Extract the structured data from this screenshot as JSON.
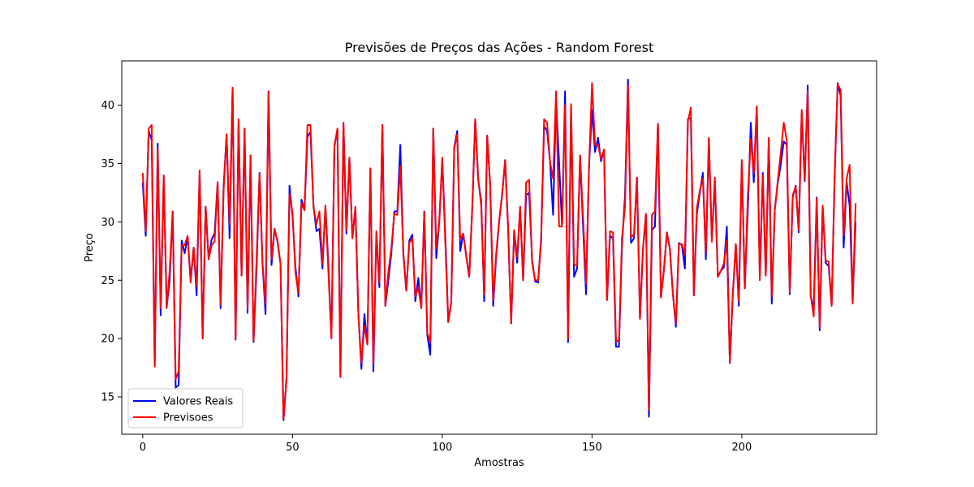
{
  "chart_data": {
    "type": "line",
    "title": "Previsões de Preços das Ações - Random Forest",
    "xlabel": "Amostras",
    "ylabel": "Preço",
    "xlim": [
      -7,
      245
    ],
    "ylim": [
      11.8,
      43.8
    ],
    "xticks": [
      0,
      50,
      100,
      150,
      200
    ],
    "yticks": [
      15,
      20,
      25,
      30,
      35,
      40
    ],
    "grid": false,
    "legend_position": "lower-left",
    "series": [
      {
        "name": "Valores Reais",
        "color": "#0000ff",
        "values": [
          33.4,
          28.8,
          37.8,
          37.0,
          17.7,
          36.7,
          22.0,
          33.8,
          22.7,
          25.0,
          30.9,
          15.8,
          16.0,
          28.4,
          27.3,
          28.7,
          25.0,
          27.8,
          23.7,
          34.4,
          20.0,
          31.3,
          26.8,
          28.5,
          29.0,
          33.4,
          22.6,
          33.0,
          37.5,
          28.6,
          41.5,
          19.9,
          38.7,
          25.4,
          38.0,
          22.2,
          35.7,
          19.7,
          25.9,
          34.2,
          26.4,
          22.1,
          41.2,
          26.3,
          29.4,
          28.3,
          26.4,
          13.0,
          16.5,
          33.1,
          30.5,
          26.1,
          23.6,
          31.9,
          31.0,
          37.3,
          37.7,
          31.4,
          29.2,
          29.4,
          26.0,
          31.3,
          26.3,
          20.1,
          36.5,
          37.9,
          16.7,
          38.5,
          29.0,
          35.5,
          28.6,
          31.2,
          22.1,
          17.4,
          22.1,
          19.5,
          34.5,
          17.2,
          29.0,
          24.4,
          38.3,
          22.8,
          25.0,
          27.3,
          30.9,
          30.9,
          36.6,
          27.2,
          24.1,
          28.4,
          28.9,
          23.2,
          25.2,
          22.6,
          30.9,
          20.3,
          18.6,
          38.0,
          26.9,
          30.0,
          35.3,
          29.0,
          21.4,
          23.1,
          36.4,
          37.8,
          27.5,
          29.0,
          27.1,
          25.3,
          31.1,
          38.8,
          33.6,
          31.8,
          23.2,
          37.4,
          33.1,
          22.8,
          27.0,
          30.1,
          32.4,
          35.3,
          29.3,
          21.3,
          29.2,
          26.5,
          31.3,
          25.0,
          32.3,
          32.5,
          26.7,
          24.9,
          24.8,
          28.6,
          38.2,
          37.8,
          35.1,
          30.6,
          40.5,
          35.1,
          29.6,
          41.2,
          19.7,
          39.7,
          25.3,
          26.0,
          35.7,
          29.6,
          23.8,
          34.8,
          39.6,
          36.0,
          37.2,
          35.2,
          36.2,
          23.3,
          28.8,
          28.6,
          19.3,
          19.3,
          28.0,
          32.2,
          42.2,
          28.2,
          28.6,
          33.8,
          21.7,
          27.6,
          30.6,
          13.3,
          29.3,
          29.6,
          38.4,
          23.6,
          25.9,
          29.1,
          27.6,
          23.8,
          21.0,
          28.2,
          28.0,
          26.0,
          38.8,
          38.9,
          23.7,
          30.7,
          32.5,
          34.2,
          26.8,
          37.1,
          28.5,
          33.5,
          25.3,
          25.8,
          26.1,
          29.6,
          17.9,
          23.8,
          28.1,
          22.8,
          35.3,
          24.3,
          31.0,
          38.5,
          33.4,
          39.9,
          25.3,
          34.2,
          25.4,
          37.1,
          23.0,
          31.0,
          33.3,
          34.9,
          36.9,
          36.6,
          23.8,
          32.1,
          33.1,
          29.1,
          39.3,
          33.5,
          41.7,
          23.6,
          22.6,
          32.1,
          20.7,
          31.2,
          26.5,
          26.2,
          22.9,
          33.9,
          41.9,
          40.8,
          27.8,
          33.4,
          31.4,
          23.2,
          30.0
        ]
      },
      {
        "name": "Previsoes",
        "color": "#ff0000",
        "values": [
          34.2,
          29.2,
          38.0,
          38.3,
          17.6,
          36.3,
          22.6,
          34.0,
          22.6,
          25.8,
          30.9,
          16.5,
          17.2,
          28.0,
          28.0,
          28.8,
          24.8,
          27.8,
          24.5,
          34.4,
          20.0,
          31.3,
          26.8,
          28.0,
          28.3,
          33.4,
          22.9,
          32.7,
          37.5,
          29.8,
          41.5,
          19.9,
          38.8,
          25.4,
          38.0,
          22.6,
          35.7,
          19.8,
          26.7,
          34.2,
          26.4,
          23.0,
          41.2,
          26.8,
          29.4,
          28.4,
          26.4,
          13.1,
          16.6,
          32.4,
          30.8,
          25.6,
          23.9,
          31.6,
          31.0,
          38.3,
          38.3,
          31.3,
          29.8,
          30.9,
          26.4,
          31.4,
          25.6,
          20.0,
          36.5,
          38.0,
          16.7,
          38.5,
          29.3,
          35.5,
          28.6,
          31.3,
          22.0,
          17.9,
          21.1,
          19.5,
          34.6,
          17.9,
          29.2,
          24.8,
          38.3,
          22.8,
          25.7,
          27.7,
          30.7,
          30.6,
          34.8,
          27.4,
          24.1,
          28.2,
          28.6,
          23.6,
          24.4,
          22.6,
          30.9,
          20.5,
          19.7,
          38.0,
          27.7,
          30.0,
          35.5,
          28.3,
          21.4,
          23.1,
          36.3,
          37.5,
          28.5,
          29.0,
          27.1,
          25.3,
          31.1,
          38.8,
          33.7,
          31.4,
          23.8,
          37.4,
          33.2,
          23.3,
          27.3,
          30.1,
          32.4,
          35.3,
          29.3,
          21.3,
          29.3,
          27.0,
          31.3,
          25.0,
          33.4,
          33.6,
          26.5,
          25.0,
          25.0,
          28.3,
          38.8,
          38.5,
          35.1,
          33.7,
          41.2,
          29.6,
          29.6,
          40.0,
          20.0,
          40.1,
          26.4,
          26.2,
          35.7,
          30.5,
          24.7,
          34.8,
          41.9,
          36.6,
          36.6,
          35.4,
          36.2,
          23.3,
          29.2,
          29.1,
          19.9,
          19.7,
          28.6,
          31.3,
          41.7,
          28.7,
          28.9,
          33.8,
          21.7,
          27.7,
          30.7,
          13.9,
          30.6,
          30.9,
          38.4,
          23.5,
          25.9,
          29.1,
          27.7,
          23.8,
          21.3,
          28.1,
          28.1,
          27.2,
          38.6,
          39.8,
          23.7,
          31.2,
          32.7,
          33.7,
          27.4,
          37.2,
          28.3,
          33.8,
          25.3,
          25.8,
          26.4,
          28.4,
          17.9,
          23.9,
          28.1,
          23.2,
          35.3,
          24.3,
          32.2,
          37.1,
          34.2,
          39.9,
          25.0,
          34.0,
          25.4,
          37.2,
          23.6,
          31.0,
          33.5,
          35.9,
          38.5,
          37.0,
          24.0,
          32.3,
          33.0,
          29.3,
          39.6,
          33.6,
          41.2,
          23.7,
          21.9,
          32.0,
          21.0,
          31.4,
          26.7,
          26.6,
          22.8,
          34.1,
          41.8,
          41.3,
          28.8,
          33.7,
          34.9,
          23.0,
          31.6
        ]
      }
    ]
  }
}
